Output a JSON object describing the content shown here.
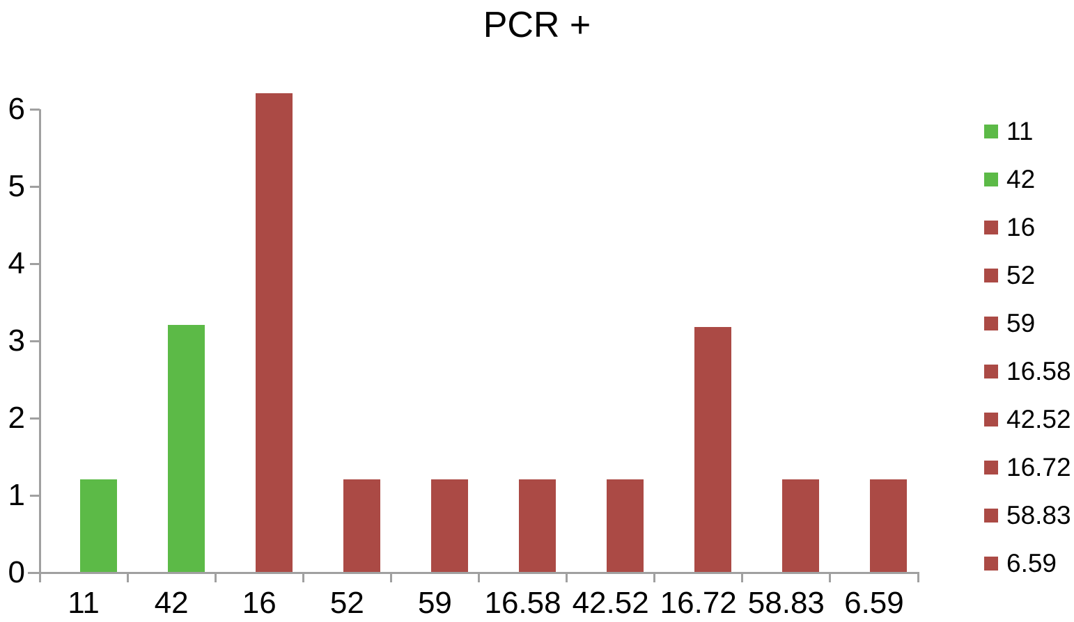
{
  "chart_data": {
    "type": "bar",
    "title": "PCR +",
    "categories": [
      "11",
      "42",
      "16",
      "52",
      "59",
      "16.58",
      "42.52",
      "16.72",
      "58.83",
      "6.59"
    ],
    "values": [
      1.2,
      3.2,
      6.2,
      1.2,
      1.2,
      1.2,
      1.2,
      3.17,
      1.2,
      1.2
    ],
    "bar_colors": [
      "#5cba47",
      "#5cba47",
      "#ab4a45",
      "#ab4a45",
      "#ab4a45",
      "#ab4a45",
      "#ab4a45",
      "#ab4a45",
      "#ab4a45",
      "#ab4a45"
    ],
    "xlabel": "",
    "ylabel": "",
    "ylim": [
      0,
      6
    ],
    "yticks": [
      0,
      1,
      2,
      3,
      4,
      5,
      6
    ],
    "grid": false,
    "legend": {
      "position": "right",
      "entries": [
        {
          "label": "11",
          "color": "#5cba47"
        },
        {
          "label": "42",
          "color": "#5cba47"
        },
        {
          "label": "16",
          "color": "#ab4a45"
        },
        {
          "label": "52",
          "color": "#ab4a45"
        },
        {
          "label": "59",
          "color": "#ab4a45"
        },
        {
          "label": "16.58",
          "color": "#ab4a45"
        },
        {
          "label": "42.52",
          "color": "#ab4a45"
        },
        {
          "label": "16.72",
          "color": "#ab4a45"
        },
        {
          "label": "58.83",
          "color": "#ab4a45"
        },
        {
          "label": "6.59",
          "color": "#ab4a45"
        }
      ]
    },
    "colors": {
      "green": "#5cba47",
      "red": "#ab4a45",
      "axis": "#a0a0a0",
      "text": "#000000",
      "background": "#ffffff"
    }
  }
}
